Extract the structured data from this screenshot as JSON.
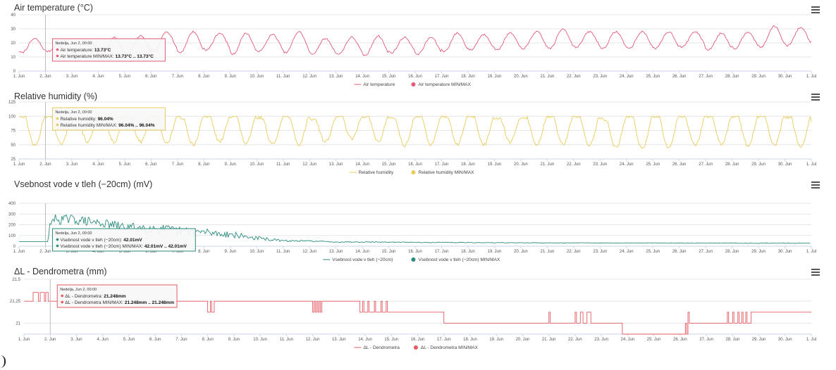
{
  "chart_data": [
    {
      "type": "line",
      "title": "Air temperature (°C)",
      "unit": "°C",
      "ylim": [
        0,
        40
      ],
      "yticks": [
        0,
        10,
        20,
        30,
        40
      ],
      "x_dates": [
        "1. Jun",
        "2. Jun",
        "3. Jun",
        "4. Jun",
        "5. Jun",
        "6. Jun",
        "7. Jun",
        "8. Jun",
        "9. Jun",
        "10. Jun",
        "11. Jun",
        "12. Jun",
        "13. Jun",
        "14. Jun",
        "15. Jun",
        "16. Jun",
        "17. Jun",
        "18. Jun",
        "19. Jun",
        "20. Jun",
        "21. Jun",
        "22. Jun",
        "23. Jun",
        "24. Jun",
        "25. Jun",
        "26. Jun",
        "27. Jun",
        "28. Jun",
        "29. Jun",
        "30. Jun",
        "1. Jul"
      ],
      "daily_min": [
        13,
        14,
        13,
        11,
        12,
        14,
        13,
        15,
        12,
        14,
        13,
        12,
        12,
        11,
        13,
        12,
        14,
        15,
        15,
        16,
        16,
        17,
        16,
        16,
        16,
        17,
        15,
        16,
        17,
        18
      ],
      "daily_max": [
        23,
        21,
        23,
        24,
        25,
        28,
        28,
        27,
        27,
        26,
        28,
        23,
        24,
        25,
        24,
        24,
        27,
        26,
        27,
        28,
        30,
        28,
        28,
        28,
        28,
        28,
        27,
        28,
        32,
        31
      ],
      "end_value": 21,
      "color": "#e35a7a",
      "series": [
        {
          "name": "Air temperature"
        },
        {
          "name": "Air temperature MIN/MAX"
        }
      ],
      "tooltip": {
        "date": "Nedelja, Jun 2, 00:00",
        "x": 2.0,
        "line1_label": "Air temperature: ",
        "line1_value": "13.73°C",
        "line2_label": "Air temperature MIN/MAX: ",
        "line2_value": "13.73°C .. 13.73°C"
      }
    },
    {
      "type": "line",
      "title": "Relative humidity (%)",
      "unit": "%",
      "ylim": [
        25,
        125
      ],
      "yticks": [
        25,
        50,
        75,
        100,
        125
      ],
      "x_dates": [
        "1. Jun",
        "2. Jun",
        "3. Jun",
        "4. Jun",
        "5. Jun",
        "6. Jun",
        "7. Jun",
        "8. Jun",
        "9. Jun",
        "10. Jun",
        "11. Jun",
        "12. Jun",
        "13. Jun",
        "14. Jun",
        "15. Jun",
        "16. Jun",
        "17. Jun",
        "18. Jun",
        "19. Jun",
        "20. Jun",
        "21. Jun",
        "22. Jun",
        "23. Jun",
        "24. Jun",
        "25. Jun",
        "26. Jun",
        "27. Jun",
        "28. Jun",
        "29. Jun",
        "30. Jun",
        "1. Jul"
      ],
      "daily_min": [
        48,
        50,
        55,
        55,
        55,
        52,
        50,
        55,
        52,
        50,
        50,
        55,
        60,
        55,
        48,
        50,
        50,
        50,
        55,
        50,
        50,
        48,
        45,
        42,
        45,
        48,
        52,
        48,
        48,
        45
      ],
      "daily_max": [
        100,
        100,
        97,
        100,
        98,
        100,
        97,
        100,
        100,
        97,
        100,
        95,
        100,
        100,
        97,
        100,
        100,
        100,
        97,
        98,
        100,
        100,
        95,
        100,
        100,
        100,
        100,
        100,
        100,
        98
      ],
      "end_value": 90,
      "color": "#e8cc5c",
      "series": [
        {
          "name": "Relative humidity"
        },
        {
          "name": "Relative humidity MIN/MAX"
        }
      ],
      "tooltip": {
        "date": "Nedelja, Jun 2, 00:00",
        "x": 2.0,
        "line1_label": "Relative humidity: ",
        "line1_value": "96.04%",
        "line2_label": "Relative humidity MIN/MAX: ",
        "line2_value": "96.04% .. 96.04%"
      }
    },
    {
      "type": "line",
      "title": "Vsebnost vode v tleh (−20cm) (mV)",
      "unit": "mV",
      "ylim": [
        0,
        400
      ],
      "yticks": [
        0,
        100,
        200,
        300,
        400
      ],
      "x_dates": [
        "1. Jun",
        "2. Jun",
        "3. Jun",
        "4. Jun",
        "5. Jun",
        "6. Jun",
        "7. Jun",
        "8. Jun",
        "9. Jun",
        "10. Jun",
        "11. Jun",
        "12. Jun",
        "13. Jun",
        "14. Jun",
        "15. Jun",
        "16. Jun",
        "17. Jun",
        "18. Jun",
        "19. Jun",
        "20. Jun",
        "21. Jun",
        "22. Jun",
        "23. Jun",
        "24. Jun",
        "25. Jun",
        "26. Jun",
        "27. Jun",
        "28. Jun",
        "29. Jun",
        "30. Jun",
        "1. Jul"
      ],
      "trend_x": [
        1,
        2.1,
        2.2,
        3,
        4,
        5,
        6,
        7,
        8,
        9,
        10,
        11,
        12,
        13,
        14,
        15,
        16,
        17,
        18,
        19,
        20,
        21,
        22,
        23,
        24,
        25,
        26,
        27,
        28,
        29,
        30,
        31
      ],
      "trend_y": [
        42,
        42,
        250,
        250,
        220,
        180,
        170,
        140,
        130,
        110,
        75,
        50,
        48,
        40,
        40,
        38,
        36,
        35,
        34,
        33,
        32,
        31,
        31,
        30,
        30,
        30,
        29,
        29,
        29,
        28,
        28,
        28
      ],
      "noise": [
        0,
        0,
        50,
        45,
        40,
        40,
        50,
        45,
        40,
        30,
        20,
        8,
        6,
        5,
        4,
        4,
        3,
        3,
        3,
        3,
        2,
        2,
        2,
        2,
        2,
        2,
        2,
        2,
        2,
        2,
        2,
        2
      ],
      "color": "#2b8c7e",
      "series": [
        {
          "name": "Vsebnost vode v tleh (−20cm)"
        },
        {
          "name": "Vsebnost vode v tleh (−20cm) MIN/MAX"
        }
      ],
      "tooltip": {
        "date": "Nedelja, Jun 2, 00:00",
        "x": 2.0,
        "line1_label": "Vsebnost vode v tleh (−20cm): ",
        "line1_value": "42.01mV",
        "line2_label": "Vsebnost vode v tleh (−20cm) MIN/MAX: ",
        "line2_value": "42.01mV .. 42.01mV"
      }
    },
    {
      "type": "line",
      "title": "ΔL - Dendrometra (mm)",
      "unit": "mm",
      "ylim": [
        20.875,
        21.5
      ],
      "yticks": [
        21,
        21.25,
        21.5
      ],
      "ytick_labels": [
        "21",
        "21.25",
        "21.5"
      ],
      "x_dates": [
        "1. Jun",
        "2. Jun",
        "3. Jun",
        "4. Jun",
        "5. Jun",
        "6. Jun",
        "7. Jun",
        "8. Jun",
        "9. Jun",
        "10. Jun",
        "11. Jun",
        "12. Jun",
        "13. Jun",
        "14. Jun",
        "15. Jun",
        "16. Jun",
        "17. Jun",
        "18. Jun",
        "19. Jun",
        "20. Jun",
        "21. Jun",
        "22. Jun",
        "23. Jun",
        "24. Jun",
        "25. Jun",
        "26. Jun",
        "27. Jun",
        "28. Jun",
        "29. Jun",
        "30. Jun",
        "1. Jul"
      ],
      "steps": [
        [
          1.0,
          21.25
        ],
        [
          1.35,
          21.35
        ],
        [
          1.55,
          21.25
        ],
        [
          1.62,
          21.35
        ],
        [
          1.78,
          21.25
        ],
        [
          1.83,
          21.35
        ],
        [
          1.92,
          21.25
        ],
        [
          8.0,
          21.125
        ],
        [
          8.1,
          21.25
        ],
        [
          8.15,
          21.125
        ],
        [
          8.25,
          21.25
        ],
        [
          12.0,
          21.125
        ],
        [
          12.05,
          21.25
        ],
        [
          12.1,
          21.125
        ],
        [
          12.15,
          21.25
        ],
        [
          12.2,
          21.125
        ],
        [
          12.25,
          21.25
        ],
        [
          12.3,
          21.125
        ],
        [
          12.35,
          21.25
        ],
        [
          13.8,
          21.125
        ],
        [
          13.9,
          21.25
        ],
        [
          13.95,
          21.125
        ],
        [
          14.1,
          21.25
        ],
        [
          14.15,
          21.125
        ],
        [
          14.35,
          21.25
        ],
        [
          14.4,
          21.125
        ],
        [
          14.6,
          21.25
        ],
        [
          14.65,
          21.125
        ],
        [
          14.8,
          21.25
        ],
        [
          14.85,
          21.125
        ],
        [
          17.0,
          21.0
        ],
        [
          21.0,
          21.125
        ],
        [
          21.05,
          21.0
        ],
        [
          22.0,
          21.125
        ],
        [
          22.05,
          21.0
        ],
        [
          22.2,
          21.125
        ],
        [
          22.3,
          21.0
        ],
        [
          22.45,
          21.125
        ],
        [
          22.6,
          21.0
        ],
        [
          23.8,
          20.875
        ],
        [
          26.2,
          21.0
        ],
        [
          26.25,
          20.875
        ],
        [
          26.3,
          21.125
        ],
        [
          26.35,
          21.0
        ],
        [
          27.8,
          21.125
        ],
        [
          27.85,
          21.0
        ],
        [
          28.0,
          21.125
        ],
        [
          28.05,
          21.0
        ],
        [
          28.2,
          21.125
        ],
        [
          28.25,
          21.0
        ],
        [
          28.35,
          21.125
        ],
        [
          28.4,
          21.0
        ],
        [
          28.5,
          21.125
        ],
        [
          28.55,
          21.0
        ],
        [
          28.7,
          21.125
        ],
        [
          31.0,
          21.125
        ]
      ],
      "color": "#e35a62",
      "series": [
        {
          "name": "ΔL - Dendrometra"
        },
        {
          "name": "ΔL - Dendrometra MIN/MAX"
        }
      ],
      "tooltip": {
        "date": "Nedelja, Jun 2, 00:00",
        "x": 2.0,
        "line1_label": "ΔL - Dendrometra: ",
        "line1_value": "21.248mm",
        "line2_label": "ΔL - Dendrometra MIN/MAX: ",
        "line2_value": "21.248mm .. 21.248mm"
      }
    }
  ]
}
